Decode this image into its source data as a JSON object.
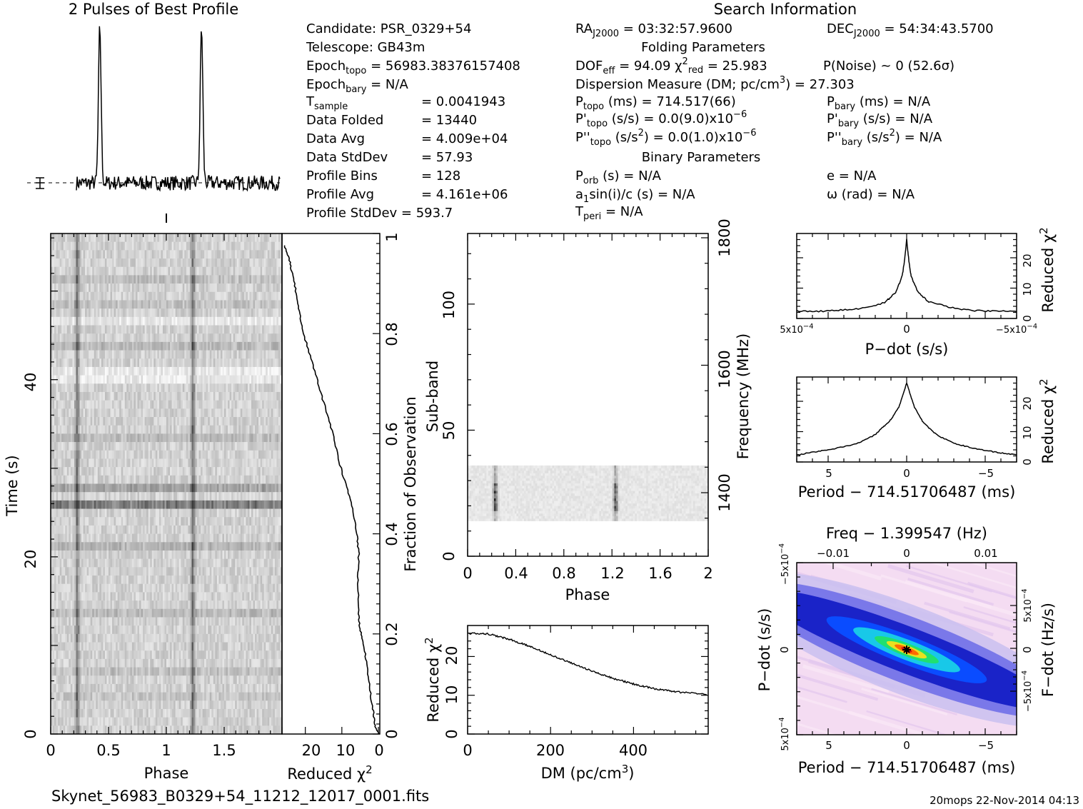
{
  "title_profile": "2 Pulses of Best Profile",
  "title_search": "Search Information",
  "info_col1": [
    "Candidate:  PSR_0329+54",
    "Telescope:  GB43m",
    "Epoch_topo = 56983.38376157408",
    "Epoch_bary = N/A",
    "T_sample      =  0.0041943",
    "Data Folded   =  13440",
    "Data Avg      =  4.009e+04",
    "Data StdDev   =  57.93",
    "Profile Bins  =  128",
    "Profile Avg   =  4.161e+06",
    "Profile StdDev =  593.7"
  ],
  "info_col2": [
    "RA_J2000 = 03:32:57.9600",
    "Folding Parameters",
    "DOF_eff = 94.09  χ²_red = 25.983",
    "Dispersion Measure (DM; pc/cm³) = 27.303",
    "P_topo (ms) =  714.517(66)",
    "P'_topo (s/s) = 0.0(9.0)x10⁻⁶",
    "P''_topo (s/s²) = 0.0(1.0)x10⁻⁶",
    "Binary Parameters",
    "P_orb (s) = N/A",
    "a₁sin(i)/c (s) = N/A",
    "T_peri = N/A"
  ],
  "info_col3": [
    "DEC_J2000 = 54:34:43.5700",
    "P(Noise) ~ 0   (52.6σ)",
    "P_bary (ms) = N/A",
    "P'_bary (s/s) = N/A",
    "P''_bary (s/s²) = N/A",
    "e = N/A",
    "ω (rad) = N/A"
  ],
  "footer_file": "Skynet_56983_B0329+54_11212_12017_0001.fits",
  "footer_stamp": "20mops 22-Nov-2014 04:13",
  "chart_data": [
    {
      "type": "line",
      "name": "pulse-profile",
      "title": "2 Pulses of Best Profile",
      "x": "phase 0-2",
      "peaks_phase": [
        0.23,
        1.23
      ],
      "peak_height_norm": 1.0,
      "baseline_norm": 0.08
    },
    {
      "type": "heatmap",
      "name": "time-vs-phase",
      "xlabel": "Phase",
      "ylabel": "Time (s)",
      "xlim": [
        0,
        2
      ],
      "ylim": [
        0,
        56
      ],
      "xticks": [
        "0",
        "0.5",
        "1",
        "1.5"
      ],
      "yticks": [
        "0",
        "20",
        "40"
      ],
      "pulse_phase": [
        0.23,
        1.23
      ]
    },
    {
      "type": "line",
      "name": "reduced-chi2-vs-time",
      "xlabel": "Reduced χ²",
      "ylabel_right": "Fraction of Observation",
      "xlim": [
        26,
        0
      ],
      "xticks": [
        "20",
        "10",
        "0"
      ],
      "yticks_right": [
        "0",
        "0.2",
        "0.4",
        "0.6",
        "0.8",
        "1"
      ],
      "points": [
        [
          0,
          0.0
        ],
        [
          1,
          0.02
        ],
        [
          1.5,
          0.05
        ],
        [
          2.5,
          0.1
        ],
        [
          3.2,
          0.14
        ],
        [
          4,
          0.18
        ],
        [
          5,
          0.21
        ],
        [
          5.5,
          0.24
        ],
        [
          5.6,
          0.3
        ],
        [
          5.4,
          0.36
        ],
        [
          5.8,
          0.4
        ],
        [
          7,
          0.45
        ],
        [
          9,
          0.5
        ],
        [
          11,
          0.55
        ],
        [
          12.5,
          0.6
        ],
        [
          14.5,
          0.65
        ],
        [
          16.5,
          0.7
        ],
        [
          18.5,
          0.75
        ],
        [
          20.5,
          0.8
        ],
        [
          21.5,
          0.84
        ],
        [
          22.5,
          0.88
        ],
        [
          23.5,
          0.92
        ],
        [
          24.5,
          0.95
        ],
        [
          26,
          0.98
        ]
      ]
    },
    {
      "type": "heatmap",
      "name": "subband-vs-phase",
      "xlabel": "Phase",
      "ylabel": "Sub-band",
      "ylabel_right": "Frequency (MHz)",
      "xlim": [
        0,
        2
      ],
      "ylim": [
        0,
        128
      ],
      "xticks": [
        "0",
        "0.4",
        "0.8",
        "1.2",
        "1.6",
        "2"
      ],
      "yticks": [
        "0",
        "50",
        "100"
      ],
      "yticks_right": [
        "1400",
        "1600",
        "1800"
      ],
      "active_subbands": [
        14,
        35
      ],
      "pulse_phase": [
        0.23,
        1.23
      ]
    },
    {
      "type": "line",
      "name": "reduced-chi2-vs-dm",
      "xlabel": "DM (pc/cm³)",
      "ylabel": "Reduced χ²",
      "xlim": [
        0,
        580
      ],
      "ylim": [
        0,
        27
      ],
      "xticks": [
        "0",
        "200",
        "400"
      ],
      "yticks": [
        "0",
        "10",
        "20"
      ],
      "points": [
        [
          0,
          26
        ],
        [
          50,
          25.8
        ],
        [
          100,
          24.5
        ],
        [
          150,
          22.6
        ],
        [
          200,
          20.5
        ],
        [
          250,
          18.3
        ],
        [
          300,
          16.2
        ],
        [
          350,
          14.4
        ],
        [
          400,
          12.9
        ],
        [
          450,
          11.7
        ],
        [
          500,
          10.9
        ],
        [
          580,
          10.2
        ]
      ]
    },
    {
      "type": "line",
      "name": "reduced-chi2-vs-pdot",
      "xlabel": "P−dot (s/s)",
      "ylabel_right": "Reduced χ²",
      "xlim": [
        0.0005,
        -0.0005
      ],
      "ylim": [
        0,
        27
      ],
      "xticks": [
        "5x10⁻⁴",
        "0",
        "−5x10⁻⁴"
      ],
      "yticks_right": [
        "0",
        "10",
        "20"
      ],
      "points": [
        [
          0.0005,
          2.5
        ],
        [
          0.0004,
          2.3
        ],
        [
          0.0003,
          2.8
        ],
        [
          0.0002,
          3.4
        ],
        [
          0.0001,
          5.2
        ],
        [
          5e-05,
          8.5
        ],
        [
          2e-05,
          14
        ],
        [
          1e-05,
          19
        ],
        [
          0,
          26
        ],
        [
          -1e-05,
          19
        ],
        [
          -2e-05,
          14
        ],
        [
          -5e-05,
          8.8
        ],
        [
          -0.0001,
          5.5
        ],
        [
          -0.0002,
          3.6
        ],
        [
          -0.0003,
          2.6
        ],
        [
          -0.0004,
          2.4
        ],
        [
          -0.0005,
          2.3
        ]
      ]
    },
    {
      "type": "line",
      "name": "reduced-chi2-vs-period",
      "xlabel": "Period − 714.51706487 (ms)",
      "ylabel_right": "Reduced χ²",
      "xlim": [
        7,
        -7
      ],
      "ylim": [
        0,
        27
      ],
      "xticks": [
        "5",
        "0",
        "−5"
      ],
      "yticks_right": [
        "0",
        "10",
        "20"
      ],
      "points": [
        [
          7,
          2.3
        ],
        [
          6,
          3.2
        ],
        [
          5,
          4.0
        ],
        [
          4,
          5.0
        ],
        [
          3,
          6.4
        ],
        [
          2,
          9.0
        ],
        [
          1.5,
          11.5
        ],
        [
          1,
          14
        ],
        [
          0.5,
          18
        ],
        [
          0,
          26
        ],
        [
          -0.5,
          18
        ],
        [
          -1,
          13.5
        ],
        [
          -1.5,
          10.8
        ],
        [
          -2,
          8.6
        ],
        [
          -3,
          6.2
        ],
        [
          -4,
          4.8
        ],
        [
          -5,
          3.8
        ],
        [
          -6,
          3.0
        ],
        [
          -7,
          2.4
        ]
      ]
    },
    {
      "type": "heatmap",
      "name": "period-pdot-plane",
      "title": "Freq − 1.399547 (Hz)",
      "xlabel": "Period − 714.51706487 (ms)",
      "ylabel": "P−dot (s/s)",
      "ylabel_right": "F−dot (Hz/s)",
      "xticks": [
        "5",
        "0",
        "−5"
      ],
      "xticks_top": [
        "−0.01",
        "0",
        "0.01"
      ],
      "yticks": [
        "5x10⁻⁴",
        "0",
        "−5x10⁻⁴"
      ],
      "yticks_right": [
        "−5x10⁻⁴",
        "0",
        "5x10⁻⁴"
      ],
      "best": [
        0,
        0
      ],
      "colors": [
        "#f4dcf2",
        "#c9c0f0",
        "#6b6be8",
        "#1a23c8",
        "#0a4cff",
        "#18c8e8",
        "#20e070",
        "#e8e020",
        "#ff6a00",
        "#d81010"
      ]
    }
  ]
}
